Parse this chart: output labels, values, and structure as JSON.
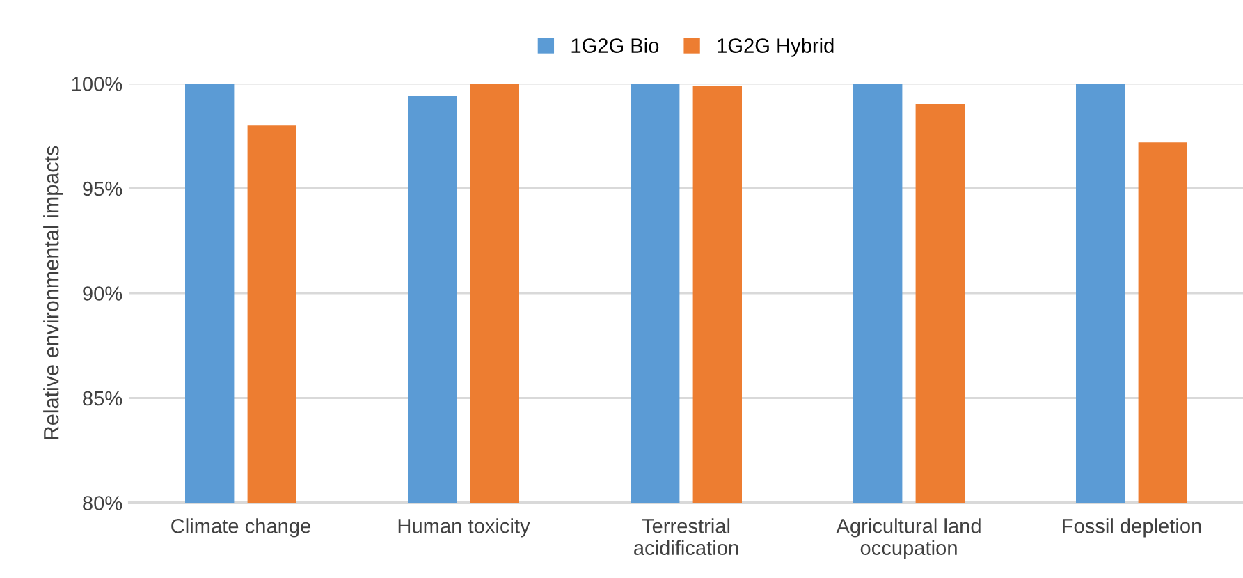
{
  "chart_data": {
    "type": "bar",
    "ylabel": "Relative environmental impacts",
    "categories": [
      "Climate change",
      "Human toxicity",
      "Terrestrial\nacidification",
      "Agricultural land\noccupation",
      "Fossil depletion"
    ],
    "series": [
      {
        "name": "1G2G Bio",
        "color": "#5b9bd5",
        "values": [
          100,
          99.4,
          100,
          100,
          100
        ]
      },
      {
        "name": "1G2G Hybrid",
        "color": "#ed7d31",
        "values": [
          98.0,
          100,
          99.9,
          99.0,
          97.2
        ]
      }
    ],
    "ylim": [
      80,
      100
    ],
    "yticks": [
      {
        "value": 80,
        "label": "80%"
      },
      {
        "value": 85,
        "label": "85%"
      },
      {
        "value": 90,
        "label": "90%"
      },
      {
        "value": 95,
        "label": "95%"
      },
      {
        "value": 100,
        "label": "100%"
      }
    ],
    "grid": "y",
    "legend": "top"
  }
}
